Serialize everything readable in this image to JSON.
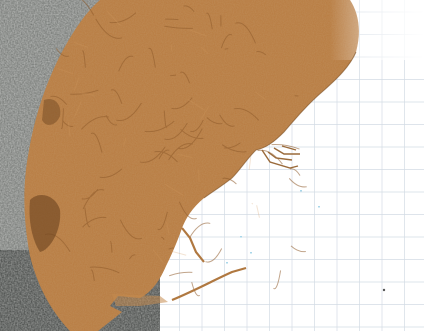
{
  "map": {
    "colors": {
      "sea": "#ffffff",
      "grid": "#d3dbe4",
      "satellite_dark": "#3c3f3d",
      "satellite_mid": "#6b6e6b",
      "satellite_light": "#9a9c99",
      "urban_overlay": "#b87a3f",
      "urban_texture": "#8f5b2b",
      "urban_highlight": "#d19a60",
      "water_marks": "#a9d7ea"
    },
    "features": [
      {
        "name": "coastline",
        "kind": "line"
      },
      {
        "name": "urban-area-overlay",
        "kind": "polygon"
      },
      {
        "name": "port-breakwater",
        "kind": "line"
      },
      {
        "name": "marina-piers",
        "kind": "line"
      },
      {
        "name": "lat-lon-grid",
        "kind": "grid"
      }
    ]
  }
}
